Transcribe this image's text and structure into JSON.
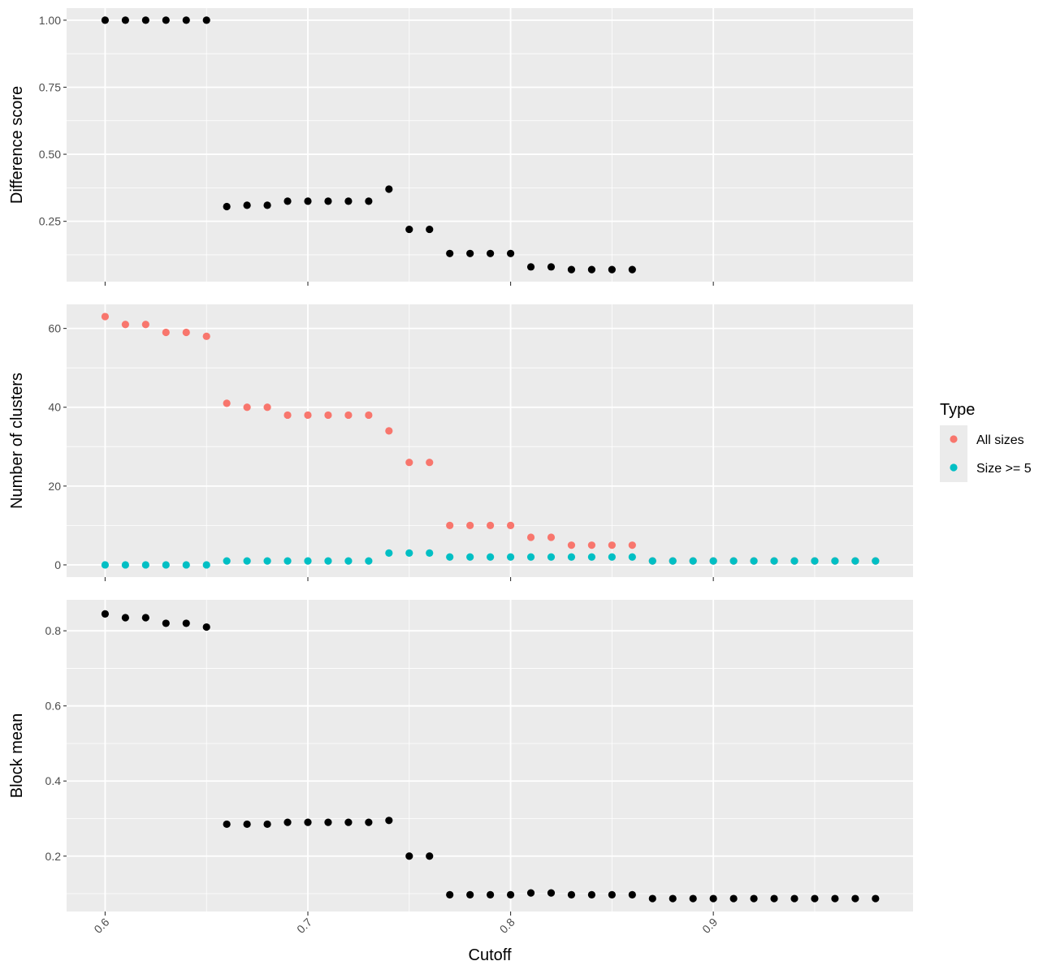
{
  "chart_data": {
    "type": "scatter",
    "x_label": "Cutoff",
    "x_ticks": [
      "0.6",
      "0.7",
      "0.8",
      "0.9"
    ],
    "x_tick_values": [
      0.6,
      0.7,
      0.8,
      0.9
    ],
    "xlim": [
      0.581,
      0.9985
    ],
    "grid": true,
    "legend": {
      "title": "Type",
      "position": "right",
      "entries": [
        {
          "label": "All sizes",
          "color": "#F8766D"
        },
        {
          "label": "Size >= 5",
          "color": "#00BFC4"
        }
      ]
    },
    "panels": [
      {
        "ylabel": "Difference score",
        "ylim": [
          0.025,
          1.045
        ],
        "y_ticks": [
          "0.25",
          "0.50",
          "0.75",
          "1.00"
        ],
        "y_tick_values": [
          0.25,
          0.5,
          0.75,
          1.0
        ],
        "y_minor": [
          0.125,
          0.375,
          0.625,
          0.875
        ],
        "series": [
          {
            "color": "#000000",
            "x": [
              0.6,
              0.61,
              0.62,
              0.63,
              0.64,
              0.65,
              0.66,
              0.67,
              0.68,
              0.69,
              0.7,
              0.71,
              0.72,
              0.73,
              0.74,
              0.75,
              0.76,
              0.77,
              0.78,
              0.79,
              0.8,
              0.81,
              0.82,
              0.83,
              0.84,
              0.85,
              0.86
            ],
            "y": [
              1.0,
              1.0,
              1.0,
              1.0,
              1.0,
              1.0,
              0.305,
              0.31,
              0.31,
              0.325,
              0.325,
              0.325,
              0.325,
              0.325,
              0.37,
              0.22,
              0.22,
              0.13,
              0.13,
              0.13,
              0.13,
              0.08,
              0.08,
              0.07,
              0.07,
              0.07,
              0.07
            ]
          }
        ]
      },
      {
        "ylabel": "Number of clusters",
        "ylim": [
          -3.1,
          66.1
        ],
        "y_ticks": [
          "0",
          "20",
          "40",
          "60"
        ],
        "y_tick_values": [
          0,
          20,
          40,
          60
        ],
        "y_minor": [
          10,
          30,
          50
        ],
        "series": [
          {
            "name": "All sizes",
            "color": "#F8766D",
            "x": [
              0.6,
              0.61,
              0.62,
              0.63,
              0.64,
              0.65,
              0.66,
              0.67,
              0.68,
              0.69,
              0.7,
              0.71,
              0.72,
              0.73,
              0.74,
              0.75,
              0.76,
              0.77,
              0.78,
              0.79,
              0.8,
              0.81,
              0.82,
              0.83,
              0.84,
              0.85,
              0.86,
              0.87,
              0.88,
              0.89,
              0.9,
              0.91,
              0.92,
              0.93,
              0.94,
              0.95,
              0.96,
              0.97,
              0.98
            ],
            "y": [
              63,
              61,
              61,
              59,
              59,
              58,
              41,
              40,
              40,
              38,
              38,
              38,
              38,
              38,
              34,
              26,
              26,
              10,
              10,
              10,
              10,
              7,
              7,
              5,
              5,
              5,
              5,
              1,
              1,
              1,
              1,
              1,
              1,
              1,
              1,
              1,
              1,
              1,
              1
            ]
          },
          {
            "name": "Size >= 5",
            "color": "#00BFC4",
            "x": [
              0.6,
              0.61,
              0.62,
              0.63,
              0.64,
              0.65,
              0.66,
              0.67,
              0.68,
              0.69,
              0.7,
              0.71,
              0.72,
              0.73,
              0.74,
              0.75,
              0.76,
              0.77,
              0.78,
              0.79,
              0.8,
              0.81,
              0.82,
              0.83,
              0.84,
              0.85,
              0.86,
              0.87,
              0.88,
              0.89,
              0.9,
              0.91,
              0.92,
              0.93,
              0.94,
              0.95,
              0.96,
              0.97,
              0.98
            ],
            "y": [
              0,
              0,
              0,
              0,
              0,
              0,
              1,
              1,
              1,
              1,
              1,
              1,
              1,
              1,
              3,
              3,
              3,
              2,
              2,
              2,
              2,
              2,
              2,
              2,
              2,
              2,
              2,
              1,
              1,
              1,
              1,
              1,
              1,
              1,
              1,
              1,
              1,
              1,
              1
            ]
          }
        ]
      },
      {
        "ylabel": "Block mean",
        "ylim": [
          0.0525,
          0.8825
        ],
        "y_ticks": [
          "0.2",
          "0.4",
          "0.6",
          "0.8"
        ],
        "y_tick_values": [
          0.2,
          0.4,
          0.6,
          0.8
        ],
        "y_minor": [
          0.1,
          0.3,
          0.5,
          0.7
        ],
        "series": [
          {
            "color": "#000000",
            "x": [
              0.6,
              0.61,
              0.62,
              0.63,
              0.64,
              0.65,
              0.66,
              0.67,
              0.68,
              0.69,
              0.7,
              0.71,
              0.72,
              0.73,
              0.74,
              0.75,
              0.76,
              0.77,
              0.78,
              0.79,
              0.8,
              0.81,
              0.82,
              0.83,
              0.84,
              0.85,
              0.86,
              0.87,
              0.88,
              0.89,
              0.9,
              0.91,
              0.92,
              0.93,
              0.94,
              0.95,
              0.96,
              0.97,
              0.98
            ],
            "y": [
              0.845,
              0.835,
              0.835,
              0.82,
              0.82,
              0.81,
              0.285,
              0.285,
              0.285,
              0.29,
              0.29,
              0.29,
              0.29,
              0.29,
              0.295,
              0.2,
              0.2,
              0.097,
              0.097,
              0.097,
              0.097,
              0.102,
              0.102,
              0.097,
              0.097,
              0.097,
              0.097,
              0.087,
              0.087,
              0.087,
              0.087,
              0.087,
              0.087,
              0.087,
              0.087,
              0.087,
              0.087,
              0.087,
              0.087
            ]
          }
        ]
      }
    ]
  }
}
